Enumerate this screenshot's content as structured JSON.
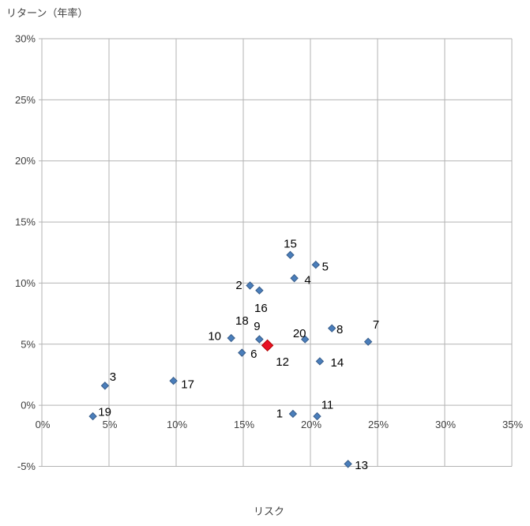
{
  "chart_data": {
    "type": "scatter",
    "title": "",
    "x_axis": {
      "title": "リスク",
      "min": 0,
      "max": 35,
      "step": 5,
      "tick_labels": [
        "0%",
        "5%",
        "10%",
        "15%",
        "20%",
        "25%",
        "30%",
        "35%"
      ],
      "tick_values": [
        0,
        5,
        10,
        15,
        20,
        25,
        30,
        35
      ]
    },
    "y_axis": {
      "title": "リターン（年率）",
      "min": -5,
      "max": 30,
      "step": 5,
      "tick_labels": [
        "30%",
        "25%",
        "20%",
        "15%",
        "10%",
        "5%",
        "0%",
        "-5%"
      ],
      "tick_values": [
        30,
        25,
        20,
        15,
        10,
        5,
        0,
        -5
      ]
    },
    "grid": true,
    "legend": "none",
    "colors": {
      "marker_fill": "#4A7EBB",
      "marker_border": "#385D8A",
      "highlight_fill": "#E81123",
      "highlight_border": "#B00000",
      "gridline": "#B3B3B3"
    },
    "series": [
      {
        "name": "funds",
        "marker": "diamond",
        "points": [
          {
            "label": "1",
            "x": 18.7,
            "y": -0.7,
            "ldx": -17,
            "ldy": -1
          },
          {
            "label": "2",
            "x": 15.5,
            "y": 9.8,
            "ldx": -14,
            "ldy": -1
          },
          {
            "label": "3",
            "x": 4.7,
            "y": 1.6,
            "ldx": 10,
            "ldy": -12
          },
          {
            "label": "4",
            "x": 18.8,
            "y": 10.4,
            "ldx": 17,
            "ldy": 2
          },
          {
            "label": "5",
            "x": 20.4,
            "y": 11.5,
            "ldx": 12,
            "ldy": 2
          },
          {
            "label": "6",
            "x": 14.9,
            "y": 4.3,
            "ldx": 15,
            "ldy": 1
          },
          {
            "label": "7",
            "x": 24.3,
            "y": 5.2,
            "ldx": 10,
            "ldy": -22
          },
          {
            "label": "8",
            "x": 21.6,
            "y": 6.3,
            "ldx": 10,
            "ldy": 1
          },
          {
            "label": "9",
            "x": 16.2,
            "y": 5.4,
            "ldx": -3,
            "ldy": -17
          },
          {
            "label": "10",
            "x": 14.1,
            "y": 5.5,
            "ldx": -21,
            "ldy": -3
          },
          {
            "label": "11",
            "x": 20.5,
            "y": -0.9,
            "ldx": 13,
            "ldy": -15
          },
          {
            "label": "13",
            "x": 22.8,
            "y": -4.8,
            "ldx": 17,
            "ldy": 1
          },
          {
            "label": "14",
            "x": 20.7,
            "y": 3.6,
            "ldx": 22,
            "ldy": 1
          },
          {
            "label": "15",
            "x": 18.5,
            "y": 12.3,
            "ldx": 0,
            "ldy": -15
          },
          {
            "label": "16",
            "x": 16.2,
            "y": 9.4,
            "ldx": 2,
            "ldy": 22
          },
          {
            "label": "17",
            "x": 9.8,
            "y": 2.0,
            "ldx": 18,
            "ldy": 4
          },
          {
            "label": "18",
            "x": 16.2,
            "y": 5.4,
            "ldx": -22,
            "ldy": -24
          },
          {
            "label": "19",
            "x": 3.8,
            "y": -0.9,
            "ldx": 15,
            "ldy": -6
          },
          {
            "label": "20",
            "x": 19.6,
            "y": 5.4,
            "ldx": -7,
            "ldy": -8
          }
        ]
      },
      {
        "name": "highlight",
        "marker": "diamond-large",
        "points": [
          {
            "label": "12",
            "x": 16.8,
            "y": 4.9,
            "ldx": 19,
            "ldy": 20
          }
        ]
      }
    ]
  }
}
